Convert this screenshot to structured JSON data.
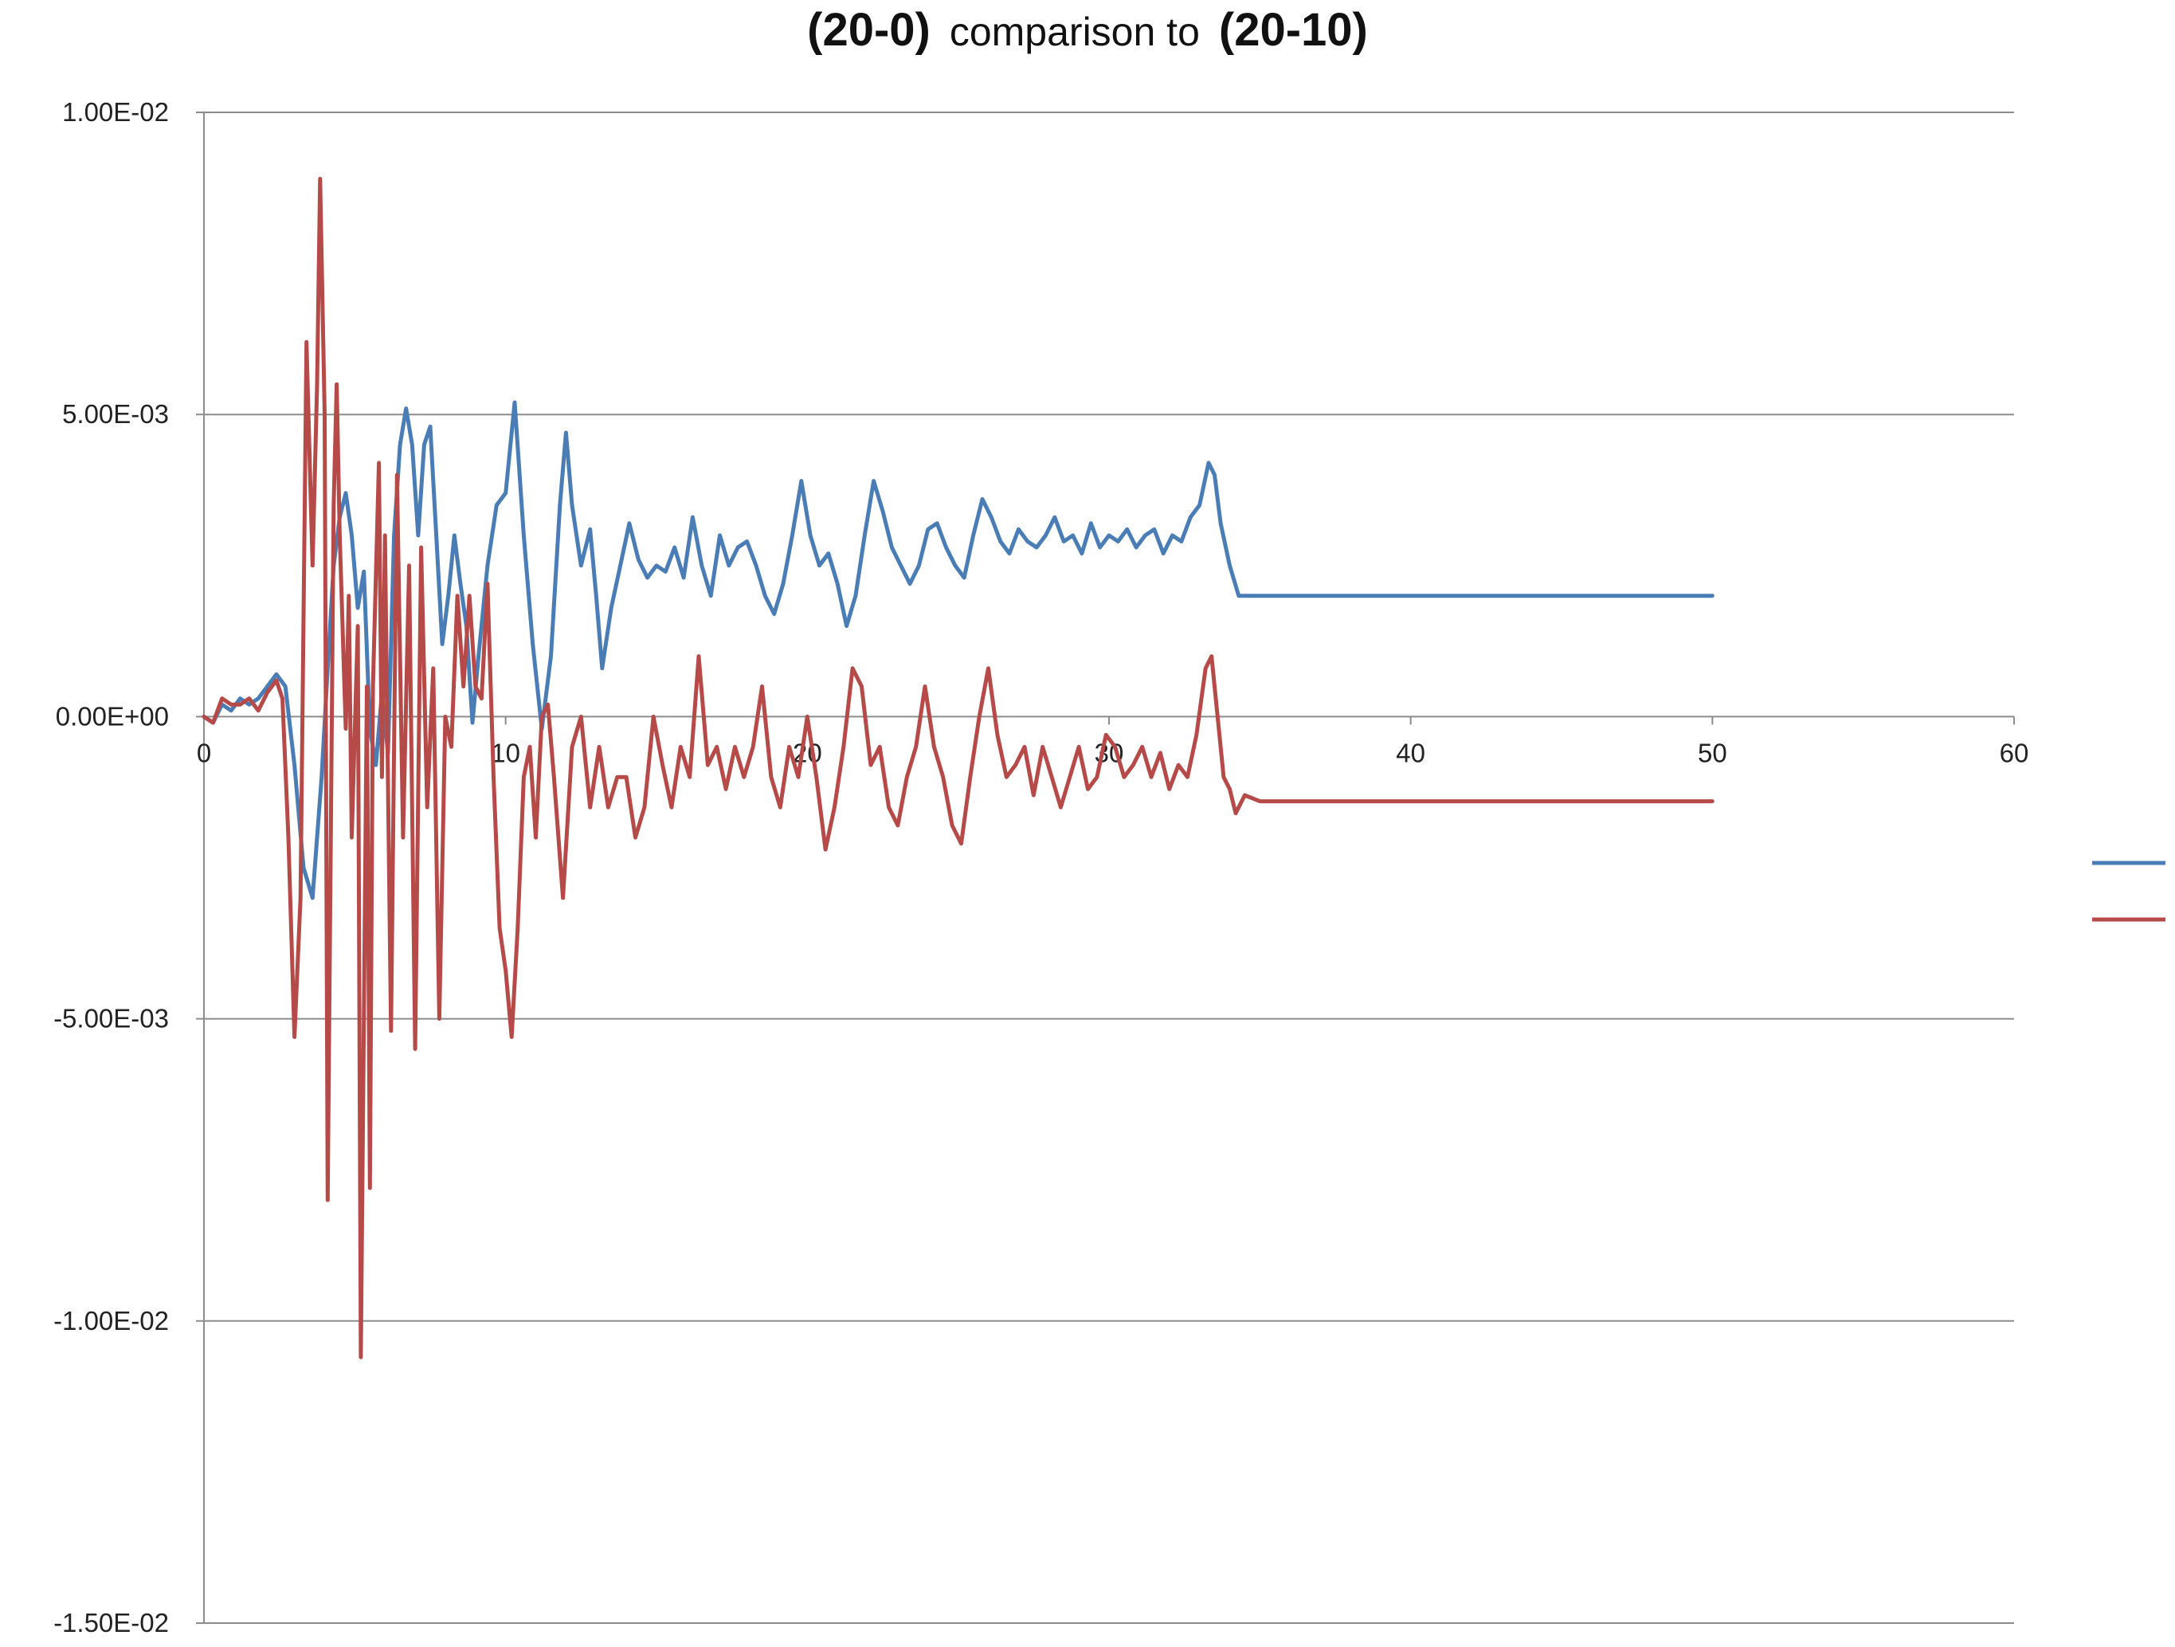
{
  "chart_data": {
    "type": "line",
    "title_parts": [
      "(20-0)",
      "comparison to",
      "(20-10)"
    ],
    "xlim": [
      0,
      60
    ],
    "ylim": [
      -0.015,
      0.01
    ],
    "x_ticks": [
      0,
      10,
      20,
      30,
      40,
      50,
      60
    ],
    "x_tick_labels": [
      "0",
      "10",
      "20",
      "30",
      "40",
      "50",
      "60"
    ],
    "y_ticks": [
      0.01,
      0.005,
      0,
      -0.005,
      -0.01,
      -0.015
    ],
    "y_tick_labels": [
      "1.00E-02",
      "5.00E-03",
      "0.00E+00",
      "-5.00E-03",
      "-1.00E-02",
      "-1.50E-02"
    ],
    "grid": true,
    "legend_position": "right",
    "series": [
      {
        "color": "#4a7db5",
        "points": [
          [
            0,
            0.0
          ],
          [
            0.3,
            -0.0001
          ],
          [
            0.6,
            0.0002
          ],
          [
            0.9,
            0.0001
          ],
          [
            1.2,
            0.0003
          ],
          [
            1.5,
            0.0002
          ],
          [
            1.8,
            0.0003
          ],
          [
            2.1,
            0.0005
          ],
          [
            2.4,
            0.0007
          ],
          [
            2.7,
            0.0005
          ],
          [
            3.0,
            -0.0008
          ],
          [
            3.3,
            -0.0025
          ],
          [
            3.6,
            -0.003
          ],
          [
            3.9,
            -0.001
          ],
          [
            4.1,
            0.0008
          ],
          [
            4.3,
            0.0025
          ],
          [
            4.5,
            0.0033
          ],
          [
            4.7,
            0.0037
          ],
          [
            4.9,
            0.003
          ],
          [
            5.1,
            0.0018
          ],
          [
            5.3,
            0.0024
          ],
          [
            5.5,
            -0.0002
          ],
          [
            5.7,
            -0.0008
          ],
          [
            5.9,
            0.0004
          ],
          [
            6.1,
            -0.0006
          ],
          [
            6.3,
            0.003
          ],
          [
            6.5,
            0.0045
          ],
          [
            6.7,
            0.0051
          ],
          [
            6.9,
            0.0045
          ],
          [
            7.1,
            0.003
          ],
          [
            7.3,
            0.0045
          ],
          [
            7.5,
            0.0048
          ],
          [
            7.7,
            0.003
          ],
          [
            7.9,
            0.0012
          ],
          [
            8.1,
            0.002
          ],
          [
            8.3,
            0.003
          ],
          [
            8.5,
            0.0022
          ],
          [
            8.7,
            0.0015
          ],
          [
            8.9,
            -0.0001
          ],
          [
            9.1,
            0.001
          ],
          [
            9.4,
            0.0025
          ],
          [
            9.7,
            0.0035
          ],
          [
            10.0,
            0.0037
          ],
          [
            10.3,
            0.0052
          ],
          [
            10.6,
            0.003
          ],
          [
            10.9,
            0.0012
          ],
          [
            11.2,
            -0.0002
          ],
          [
            11.5,
            0.001
          ],
          [
            11.8,
            0.0035
          ],
          [
            12.0,
            0.0047
          ],
          [
            12.2,
            0.0035
          ],
          [
            12.5,
            0.0025
          ],
          [
            12.8,
            0.0031
          ],
          [
            13.0,
            0.002
          ],
          [
            13.2,
            0.0008
          ],
          [
            13.5,
            0.0018
          ],
          [
            13.8,
            0.0025
          ],
          [
            14.1,
            0.0032
          ],
          [
            14.4,
            0.0026
          ],
          [
            14.7,
            0.0023
          ],
          [
            15.0,
            0.0025
          ],
          [
            15.3,
            0.0024
          ],
          [
            15.6,
            0.0028
          ],
          [
            15.9,
            0.0023
          ],
          [
            16.2,
            0.0033
          ],
          [
            16.5,
            0.0025
          ],
          [
            16.8,
            0.002
          ],
          [
            17.1,
            0.003
          ],
          [
            17.4,
            0.0025
          ],
          [
            17.7,
            0.0028
          ],
          [
            18.0,
            0.0029
          ],
          [
            18.3,
            0.0025
          ],
          [
            18.6,
            0.002
          ],
          [
            18.9,
            0.0017
          ],
          [
            19.2,
            0.0022
          ],
          [
            19.5,
            0.003
          ],
          [
            19.8,
            0.0039
          ],
          [
            20.1,
            0.003
          ],
          [
            20.4,
            0.0025
          ],
          [
            20.7,
            0.0027
          ],
          [
            21.0,
            0.0022
          ],
          [
            21.3,
            0.0015
          ],
          [
            21.6,
            0.002
          ],
          [
            21.9,
            0.003
          ],
          [
            22.2,
            0.0039
          ],
          [
            22.5,
            0.0034
          ],
          [
            22.8,
            0.0028
          ],
          [
            23.1,
            0.0025
          ],
          [
            23.4,
            0.0022
          ],
          [
            23.7,
            0.0025
          ],
          [
            24.0,
            0.0031
          ],
          [
            24.3,
            0.0032
          ],
          [
            24.6,
            0.0028
          ],
          [
            24.9,
            0.0025
          ],
          [
            25.2,
            0.0023
          ],
          [
            25.5,
            0.003
          ],
          [
            25.8,
            0.0036
          ],
          [
            26.1,
            0.0033
          ],
          [
            26.4,
            0.0029
          ],
          [
            26.7,
            0.0027
          ],
          [
            27.0,
            0.0031
          ],
          [
            27.3,
            0.0029
          ],
          [
            27.6,
            0.0028
          ],
          [
            27.9,
            0.003
          ],
          [
            28.2,
            0.0033
          ],
          [
            28.5,
            0.0029
          ],
          [
            28.8,
            0.003
          ],
          [
            29.1,
            0.0027
          ],
          [
            29.4,
            0.0032
          ],
          [
            29.7,
            0.0028
          ],
          [
            30.0,
            0.003
          ],
          [
            30.3,
            0.0029
          ],
          [
            30.6,
            0.0031
          ],
          [
            30.9,
            0.0028
          ],
          [
            31.2,
            0.003
          ],
          [
            31.5,
            0.0031
          ],
          [
            31.8,
            0.0027
          ],
          [
            32.1,
            0.003
          ],
          [
            32.4,
            0.0029
          ],
          [
            32.7,
            0.0033
          ],
          [
            33.0,
            0.0035
          ],
          [
            33.3,
            0.0042
          ],
          [
            33.5,
            0.004
          ],
          [
            33.7,
            0.0032
          ],
          [
            34.0,
            0.0025
          ],
          [
            34.3,
            0.002
          ],
          [
            35,
            0.002
          ],
          [
            40,
            0.002
          ],
          [
            45,
            0.002
          ],
          [
            50,
            0.002
          ]
        ]
      },
      {
        "color": "#b54a48",
        "points": [
          [
            0,
            0.0
          ],
          [
            0.3,
            -0.0001
          ],
          [
            0.6,
            0.0003
          ],
          [
            0.9,
            0.0002
          ],
          [
            1.2,
            0.0002
          ],
          [
            1.5,
            0.0003
          ],
          [
            1.8,
            0.0001
          ],
          [
            2.1,
            0.0004
          ],
          [
            2.4,
            0.0006
          ],
          [
            2.6,
            0.0003
          ],
          [
            2.8,
            -0.002
          ],
          [
            3.0,
            -0.0053
          ],
          [
            3.2,
            -0.003
          ],
          [
            3.4,
            0.0062
          ],
          [
            3.6,
            0.0025
          ],
          [
            3.75,
            0.0055
          ],
          [
            3.85,
            0.0089
          ],
          [
            4.0,
            0.005
          ],
          [
            4.1,
            -0.008
          ],
          [
            4.3,
            0.0035
          ],
          [
            4.4,
            0.0055
          ],
          [
            4.5,
            0.003
          ],
          [
            4.7,
            -0.0002
          ],
          [
            4.8,
            0.002
          ],
          [
            4.9,
            -0.002
          ],
          [
            5.1,
            0.0015
          ],
          [
            5.2,
            -0.0106
          ],
          [
            5.4,
            0.0005
          ],
          [
            5.5,
            -0.0078
          ],
          [
            5.6,
            0.0005
          ],
          [
            5.8,
            0.0042
          ],
          [
            5.9,
            -0.001
          ],
          [
            6.0,
            0.003
          ],
          [
            6.2,
            -0.0052
          ],
          [
            6.4,
            0.004
          ],
          [
            6.6,
            -0.002
          ],
          [
            6.8,
            0.0025
          ],
          [
            7.0,
            -0.0055
          ],
          [
            7.2,
            0.0028
          ],
          [
            7.4,
            -0.0015
          ],
          [
            7.6,
            0.0008
          ],
          [
            7.8,
            -0.005
          ],
          [
            8.0,
            0.0
          ],
          [
            8.2,
            -0.0005
          ],
          [
            8.4,
            0.002
          ],
          [
            8.6,
            0.0005
          ],
          [
            8.8,
            0.002
          ],
          [
            9.0,
            0.0005
          ],
          [
            9.2,
            0.0003
          ],
          [
            9.4,
            0.0022
          ],
          [
            9.6,
            -0.001
          ],
          [
            9.8,
            -0.0035
          ],
          [
            10.0,
            -0.0042
          ],
          [
            10.2,
            -0.0053
          ],
          [
            10.4,
            -0.0035
          ],
          [
            10.6,
            -0.001
          ],
          [
            10.8,
            -0.0005
          ],
          [
            11.0,
            -0.002
          ],
          [
            11.2,
            0.0
          ],
          [
            11.4,
            0.0002
          ],
          [
            11.6,
            -0.001
          ],
          [
            11.9,
            -0.003
          ],
          [
            12.2,
            -0.0005
          ],
          [
            12.5,
            0.0
          ],
          [
            12.8,
            -0.0015
          ],
          [
            13.1,
            -0.0005
          ],
          [
            13.4,
            -0.0015
          ],
          [
            13.7,
            -0.001
          ],
          [
            14.0,
            -0.001
          ],
          [
            14.3,
            -0.002
          ],
          [
            14.6,
            -0.0015
          ],
          [
            14.9,
            0.0
          ],
          [
            15.2,
            -0.0008
          ],
          [
            15.5,
            -0.0015
          ],
          [
            15.8,
            -0.0005
          ],
          [
            16.1,
            -0.001
          ],
          [
            16.4,
            0.001
          ],
          [
            16.7,
            -0.0008
          ],
          [
            17.0,
            -0.0005
          ],
          [
            17.3,
            -0.0012
          ],
          [
            17.6,
            -0.0005
          ],
          [
            17.9,
            -0.001
          ],
          [
            18.2,
            -0.0005
          ],
          [
            18.5,
            0.0005
          ],
          [
            18.8,
            -0.001
          ],
          [
            19.1,
            -0.0015
          ],
          [
            19.4,
            -0.0005
          ],
          [
            19.7,
            -0.001
          ],
          [
            20.0,
            0.0
          ],
          [
            20.3,
            -0.001
          ],
          [
            20.6,
            -0.0022
          ],
          [
            20.9,
            -0.0015
          ],
          [
            21.2,
            -0.0005
          ],
          [
            21.5,
            0.0008
          ],
          [
            21.8,
            0.0005
          ],
          [
            22.1,
            -0.0008
          ],
          [
            22.4,
            -0.0005
          ],
          [
            22.7,
            -0.0015
          ],
          [
            23.0,
            -0.0018
          ],
          [
            23.3,
            -0.001
          ],
          [
            23.6,
            -0.0005
          ],
          [
            23.9,
            0.0005
          ],
          [
            24.2,
            -0.0005
          ],
          [
            24.5,
            -0.001
          ],
          [
            24.8,
            -0.0018
          ],
          [
            25.1,
            -0.0021
          ],
          [
            25.4,
            -0.001
          ],
          [
            25.7,
            0.0
          ],
          [
            26.0,
            0.0008
          ],
          [
            26.3,
            -0.0003
          ],
          [
            26.6,
            -0.001
          ],
          [
            26.9,
            -0.0008
          ],
          [
            27.2,
            -0.0005
          ],
          [
            27.5,
            -0.0013
          ],
          [
            27.8,
            -0.0005
          ],
          [
            28.1,
            -0.001
          ],
          [
            28.4,
            -0.0015
          ],
          [
            28.7,
            -0.001
          ],
          [
            29.0,
            -0.0005
          ],
          [
            29.3,
            -0.0012
          ],
          [
            29.6,
            -0.001
          ],
          [
            29.9,
            -0.0003
          ],
          [
            30.2,
            -0.0005
          ],
          [
            30.5,
            -0.001
          ],
          [
            30.8,
            -0.0008
          ],
          [
            31.1,
            -0.0005
          ],
          [
            31.4,
            -0.001
          ],
          [
            31.7,
            -0.0006
          ],
          [
            32.0,
            -0.0012
          ],
          [
            32.3,
            -0.0008
          ],
          [
            32.6,
            -0.001
          ],
          [
            32.9,
            -0.0003
          ],
          [
            33.2,
            0.0008
          ],
          [
            33.4,
            0.001
          ],
          [
            33.6,
            0.0
          ],
          [
            33.8,
            -0.001
          ],
          [
            34.0,
            -0.0012
          ],
          [
            34.2,
            -0.0016
          ],
          [
            34.5,
            -0.0013
          ],
          [
            35,
            -0.0014
          ],
          [
            40,
            -0.0014
          ],
          [
            45,
            -0.0014
          ],
          [
            50,
            -0.0014
          ]
        ]
      }
    ]
  }
}
